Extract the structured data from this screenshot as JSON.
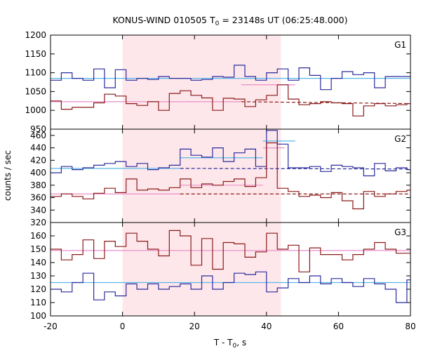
{
  "chart_data": {
    "type": "line",
    "title": "KONUS-WIND 010505 T",
    "title_sub": "0",
    "title_rest": " = 23148s UT (06:25:48.000)",
    "xlabel": "T - T",
    "xlabel_sub": "0",
    "xlabel_rest": ", s",
    "ylabel": "counts / sec",
    "xlim": [
      -20,
      80
    ],
    "xticks": [
      -20,
      0,
      20,
      40,
      60,
      80
    ],
    "xtick_labels": [
      "-20",
      "0",
      "20",
      "40",
      "60",
      "80"
    ],
    "highlight_interval": [
      0,
      44
    ],
    "colors": {
      "blue_series": "#2b2b9e",
      "red_series": "#8b1a1a",
      "blue_fit": "#5ab7ea",
      "red_fit": "#e98ec8",
      "highlight": "#fde7ea"
    },
    "panels": [
      {
        "label": "G1",
        "ylim": [
          950,
          1200
        ],
        "yticks": [
          950,
          1000,
          1050,
          1100,
          1150,
          1200
        ],
        "ytick_labels": [
          "950",
          "1000",
          "1050",
          "1100",
          "1150",
          "1200"
        ],
        "series": [
          {
            "color_key": "blue_series",
            "x": [
              -20,
              -17,
              -14,
              -11,
              -8,
              -5,
              -2,
              1,
              4,
              7,
              10,
              13,
              16,
              19,
              22,
              25,
              28,
              31,
              34,
              37,
              40,
              43,
              46,
              49,
              52,
              55,
              58,
              61,
              64,
              67,
              70,
              73,
              76,
              79
            ],
            "y": [
              1080,
              1100,
              1085,
              1080,
              1110,
              1060,
              1108,
              1080,
              1085,
              1082,
              1090,
              1085,
              1085,
              1080,
              1082,
              1090,
              1088,
              1120,
              1090,
              1080,
              1100,
              1110,
              1080,
              1113,
              1093,
              1055,
              1085,
              1103,
              1095,
              1100,
              1060,
              1090,
              1090,
              1090
            ]
          },
          {
            "color_key": "red_series",
            "x": [
              -20,
              -17,
              -14,
              -11,
              -8,
              -5,
              -2,
              1,
              4,
              7,
              10,
              13,
              16,
              19,
              22,
              25,
              28,
              31,
              34,
              37,
              40,
              43,
              46,
              49,
              52,
              55,
              58,
              61,
              64,
              67,
              70,
              73,
              76,
              79
            ],
            "y": [
              1025,
              1003,
              1008,
              1008,
              1020,
              1043,
              1038,
              1018,
              1013,
              1023,
              1000,
              1045,
              1052,
              1040,
              1033,
              1000,
              1032,
              1030,
              1010,
              1028,
              1040,
              1068,
              1030,
              1015,
              1018,
              1023,
              1020,
              1018,
              985,
              1012,
              1018,
              1012,
              1015,
              1018
            ]
          }
        ],
        "fits": [
          {
            "color_key": "blue_fit",
            "dashed": false,
            "segments": [
              [
                -20,
                1085,
                80,
                1085
              ]
            ]
          },
          {
            "color_key": "red_fit",
            "dashed": false,
            "segments": [
              [
                -20,
                1023,
                33,
                1023
              ],
              [
                33,
                1068,
                48,
                1068
              ]
            ]
          },
          {
            "color_key": "red_series",
            "dashed": true,
            "segments": [
              [
                33,
                1023,
                80,
                1018
              ]
            ]
          }
        ]
      },
      {
        "label": "G2",
        "ylim": [
          320,
          470
        ],
        "yticks": [
          320,
          340,
          360,
          380,
          400,
          420,
          440,
          460
        ],
        "ytick_labels": [
          "320",
          "340",
          "360",
          "380",
          "400",
          "420",
          "440",
          "460"
        ],
        "series": [
          {
            "color_key": "blue_series",
            "x": [
              -20,
              -17,
              -14,
              -11,
              -8,
              -5,
              -2,
              1,
              4,
              7,
              10,
              13,
              16,
              19,
              22,
              25,
              28,
              31,
              34,
              37,
              40,
              43,
              46,
              49,
              52,
              55,
              58,
              61,
              64,
              67,
              70,
              73,
              76,
              79
            ],
            "y": [
              400,
              410,
              405,
              408,
              412,
              415,
              418,
              410,
              415,
              405,
              408,
              412,
              438,
              428,
              425,
              440,
              418,
              432,
              438,
              410,
              468,
              446,
              408,
              408,
              410,
              402,
              412,
              410,
              408,
              395,
              415,
              403,
              408,
              405
            ]
          },
          {
            "color_key": "red_series",
            "x": [
              -20,
              -17,
              -14,
              -11,
              -8,
              -5,
              -2,
              1,
              4,
              7,
              10,
              13,
              16,
              19,
              22,
              25,
              28,
              31,
              34,
              37,
              40,
              43,
              46,
              49,
              52,
              55,
              58,
              61,
              64,
              67,
              70,
              73,
              76,
              79
            ],
            "y": [
              362,
              366,
              362,
              358,
              367,
              375,
              368,
              390,
              372,
              374,
              372,
              376,
              390,
              376,
              382,
              380,
              386,
              390,
              378,
              392,
              448,
              375,
              370,
              362,
              364,
              360,
              368,
              355,
              342,
              370,
              362,
              366,
              370,
              372
            ]
          }
        ],
        "fits": [
          {
            "color_key": "blue_fit",
            "dashed": false,
            "segments": [
              [
                -20,
                407,
                16,
                407
              ],
              [
                16,
                424,
                39,
                424
              ],
              [
                39,
                451,
                48,
                451
              ]
            ]
          },
          {
            "color_key": "red_fit",
            "dashed": false,
            "segments": [
              [
                -20,
                366,
                16,
                366
              ],
              [
                16,
                380,
                39,
                380
              ],
              [
                39,
                440,
                45,
                440
              ]
            ]
          },
          {
            "color_key": "blue_series",
            "dashed": true,
            "segments": [
              [
                16,
                407,
                80,
                406
              ]
            ]
          },
          {
            "color_key": "red_series",
            "dashed": true,
            "segments": [
              [
                16,
                366,
                80,
                366
              ]
            ]
          }
        ]
      },
      {
        "label": "G3",
        "ylim": [
          100,
          170
        ],
        "yticks": [
          100,
          110,
          120,
          130,
          140,
          150,
          160
        ],
        "ytick_labels": [
          "100",
          "110",
          "120",
          "130",
          "140",
          "150",
          "160"
        ],
        "series": [
          {
            "color_key": "blue_series",
            "x": [
              -20,
              -17,
              -14,
              -11,
              -8,
              -5,
              -2,
              1,
              4,
              7,
              10,
              13,
              16,
              19,
              22,
              25,
              28,
              31,
              34,
              37,
              40,
              43,
              46,
              49,
              52,
              55,
              58,
              61,
              64,
              67,
              70,
              73,
              76,
              79
            ],
            "y": [
              120,
              118,
              125,
              132,
              112,
              118,
              115,
              124,
              120,
              124,
              120,
              122,
              124,
              120,
              130,
              120,
              125,
              132,
              131,
              133,
              118,
              121,
              128,
              125,
              130,
              124,
              128,
              125,
              122,
              128,
              124,
              120,
              110,
              127
            ]
          },
          {
            "color_key": "red_series",
            "x": [
              -20,
              -17,
              -14,
              -11,
              -8,
              -5,
              -2,
              1,
              4,
              7,
              10,
              13,
              16,
              19,
              22,
              25,
              28,
              31,
              34,
              37,
              40,
              43,
              46,
              49,
              52,
              55,
              58,
              61,
              64,
              67,
              70,
              73,
              76,
              79
            ],
            "y": [
              150,
              142,
              146,
              157,
              143,
              156,
              152,
              162,
              156,
              150,
              145,
              164,
              160,
              138,
              158,
              135,
              155,
              154,
              144,
              148,
              162,
              150,
              153,
              133,
              151,
              146,
              146,
              142,
              146,
              150,
              155,
              150,
              147,
              147
            ]
          }
        ],
        "fits": [
          {
            "color_key": "red_fit",
            "dashed": false,
            "segments": [
              [
                -20,
                149,
                80,
                149
              ]
            ]
          },
          {
            "color_key": "blue_fit",
            "dashed": false,
            "segments": [
              [
                -20,
                125,
                80,
                125
              ]
            ]
          }
        ]
      }
    ]
  }
}
